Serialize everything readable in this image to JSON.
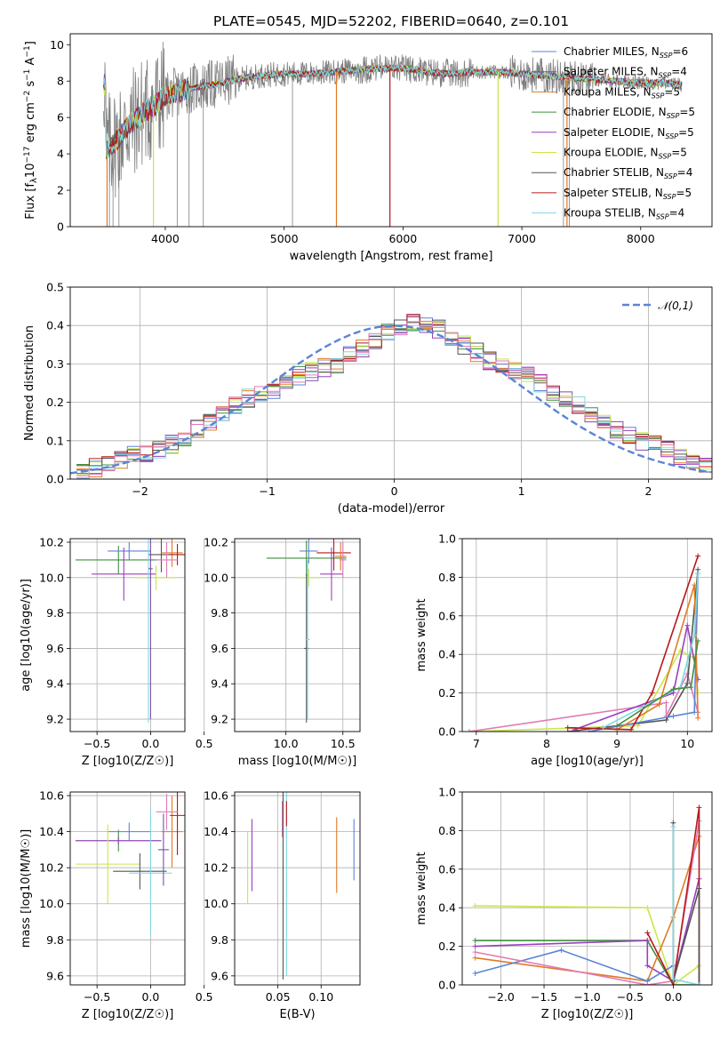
{
  "title": "PLATE=0545, MJD=52202, FIBERID=0640, z=0.101",
  "colors": {
    "Chabrier MILES": "#5b84d6",
    "Salpeter MILES": "#7b4fa8",
    "Kroupa MILES": "#e07b26",
    "Chabrier ELODIE": "#3f8f3f",
    "Salpeter ELODIE": "#9b3fbd",
    "Kroupa ELODIE": "#c8e84a",
    "Chabrier STELIB": "#555555",
    "Salpeter STELIB": "#b51a1a",
    "Kroupa STELIB": "#7fd7e0",
    "data": "#808080",
    "normal": "#5b84d6",
    "extra_pink": "#e07bb5"
  },
  "chart_data": [
    {
      "id": "spectrum",
      "type": "line",
      "title": "PLATE=0545, MJD=52202, FIBERID=0640, z=0.101",
      "xlabel": "wavelength [Angstrom, rest frame]",
      "ylabel_parts": [
        "Flux [f",
        "λ",
        "10",
        "−17",
        " erg cm",
        "−2",
        " s",
        "−1",
        " A",
        "−1",
        "]"
      ],
      "xlim": [
        3200,
        8600
      ],
      "ylim": [
        0,
        10.6
      ],
      "xticks": [
        4000,
        5000,
        6000,
        7000,
        8000
      ],
      "yticks": [
        0,
        2,
        4,
        6,
        8,
        10
      ],
      "legend_position": "upper-right",
      "legend": [
        {
          "name": "Chabrier MILES",
          "nssp": "6"
        },
        {
          "name": "Salpeter MILES",
          "nssp": "4"
        },
        {
          "name": "Kroupa MILES",
          "nssp": "5"
        },
        {
          "name": "Chabrier ELODIE",
          "nssp": "5"
        },
        {
          "name": "Salpeter ELODIE",
          "nssp": "5"
        },
        {
          "name": "Kroupa ELODIE",
          "nssp": "5"
        },
        {
          "name": "Chabrier STELIB",
          "nssp": "4"
        },
        {
          "name": "Salpeter STELIB",
          "nssp": "5"
        },
        {
          "name": "Kroupa STELIB",
          "nssp": "4"
        }
      ],
      "continuum": [
        [
          3500,
          4.2
        ],
        [
          3600,
          4.8
        ],
        [
          3700,
          5.6
        ],
        [
          3800,
          6.2
        ],
        [
          3900,
          6.6
        ],
        [
          4000,
          7.2
        ],
        [
          4200,
          7.6
        ],
        [
          4400,
          7.8
        ],
        [
          4600,
          8.1
        ],
        [
          4800,
          8.3
        ],
        [
          5000,
          8.4
        ],
        [
          5200,
          8.4
        ],
        [
          5400,
          8.5
        ],
        [
          5600,
          8.6
        ],
        [
          5800,
          8.7
        ],
        [
          6000,
          8.7
        ],
        [
          6200,
          8.5
        ],
        [
          6400,
          8.4
        ],
        [
          6600,
          8.5
        ],
        [
          6800,
          8.5
        ],
        [
          7000,
          8.4
        ],
        [
          7200,
          8.3
        ],
        [
          7400,
          8.2
        ],
        [
          7600,
          8.1
        ],
        [
          7800,
          8.0
        ],
        [
          8000,
          7.9
        ],
        [
          8200,
          7.9
        ],
        [
          8350,
          7.8
        ]
      ]
    },
    {
      "id": "residuals",
      "type": "histogram",
      "xlabel": "(data-model)/error",
      "ylabel": "Normed distribution",
      "xlim": [
        -2.55,
        2.5
      ],
      "ylim": [
        0,
        0.5
      ],
      "xticks": [
        -2,
        -1,
        0,
        1,
        2
      ],
      "yticks": [
        0.0,
        0.1,
        0.2,
        0.3,
        0.4,
        0.5
      ],
      "grid": true,
      "legend_position": "upper-right",
      "legend": [
        "𝒩(0,1)"
      ],
      "bin_centers": [
        -2.45,
        -2.35,
        -2.25,
        -2.15,
        -2.05,
        -1.95,
        -1.85,
        -1.75,
        -1.65,
        -1.55,
        -1.45,
        -1.35,
        -1.25,
        -1.15,
        -1.05,
        -0.95,
        -0.85,
        -0.75,
        -0.65,
        -0.55,
        -0.45,
        -0.35,
        -0.25,
        -0.15,
        -0.05,
        0.05,
        0.15,
        0.25,
        0.35,
        0.45,
        0.55,
        0.65,
        0.75,
        0.85,
        0.95,
        1.05,
        1.15,
        1.25,
        1.35,
        1.45,
        1.55,
        1.65,
        1.75,
        1.85,
        1.95,
        2.05,
        2.15,
        2.25,
        2.35,
        2.45
      ],
      "base_values": [
        0.02,
        0.03,
        0.04,
        0.05,
        0.06,
        0.07,
        0.08,
        0.09,
        0.11,
        0.13,
        0.15,
        0.17,
        0.19,
        0.21,
        0.22,
        0.23,
        0.25,
        0.27,
        0.28,
        0.29,
        0.3,
        0.32,
        0.34,
        0.36,
        0.38,
        0.4,
        0.41,
        0.4,
        0.39,
        0.37,
        0.35,
        0.33,
        0.31,
        0.3,
        0.28,
        0.27,
        0.25,
        0.23,
        0.21,
        0.19,
        0.17,
        0.15,
        0.13,
        0.11,
        0.1,
        0.09,
        0.08,
        0.06,
        0.05,
        0.04
      ]
    },
    {
      "id": "age-vs-Z",
      "type": "scatter",
      "xlabel": "Z [log10(Z/Z☉)]",
      "ylabel": "age  [log10(age/yr)]",
      "xlim": [
        -0.75,
        0.32
      ],
      "ylim": [
        9.13,
        10.22
      ],
      "xticks": [
        -0.5,
        0.0,
        0.5
      ],
      "yticks": [
        9.2,
        9.4,
        9.6,
        9.8,
        10.0,
        10.2
      ],
      "grid": true
    },
    {
      "id": "age-vs-mass",
      "type": "scatter",
      "xlabel": "mass [log10(M/M☉)]",
      "xlim": [
        9.55,
        10.65
      ],
      "ylim": [
        9.13,
        10.22
      ],
      "xticks": [
        10.0,
        10.5
      ],
      "yticks": [
        9.2,
        9.4,
        9.6,
        9.8,
        10.0,
        10.2
      ],
      "grid": true
    },
    {
      "id": "weight-vs-age",
      "type": "line",
      "xlabel": "age  [log10(age/yr)]",
      "ylabel": "mass weight",
      "xlim": [
        6.8,
        10.35
      ],
      "ylim": [
        0,
        1.0
      ],
      "xticks": [
        7,
        8,
        9,
        10
      ],
      "yticks": [
        0.0,
        0.2,
        0.4,
        0.6,
        0.8,
        1.0
      ],
      "grid": true
    },
    {
      "id": "mass-vs-Z",
      "type": "scatter",
      "xlabel": "Z [log10(Z/Z☉)]",
      "ylabel": "mass [log10(M/M☉)]",
      "xlim": [
        -0.75,
        0.32
      ],
      "ylim": [
        9.55,
        10.62
      ],
      "xticks": [
        -0.5,
        0.0,
        0.5
      ],
      "yticks": [
        9.6,
        9.8,
        10.0,
        10.2,
        10.4,
        10.6
      ],
      "grid": true
    },
    {
      "id": "mass-vs-ebv",
      "type": "scatter",
      "xlabel": "E(B-V)",
      "xlim": [
        0.0,
        0.145
      ],
      "ylim": [
        9.55,
        10.62
      ],
      "xticks": [
        0.05,
        0.1
      ],
      "yticks": [
        9.6,
        9.8,
        10.0,
        10.2,
        10.4,
        10.6
      ],
      "grid": true
    },
    {
      "id": "weight-vs-Z",
      "type": "line",
      "xlabel": "Z [log10(Z/Z☉)]",
      "ylabel": "mass weight",
      "xlim": [
        -2.45,
        0.45
      ],
      "ylim": [
        0,
        1.0
      ],
      "xticks": [
        -2.0,
        -1.5,
        -1.0,
        -0.5,
        0.0
      ],
      "yticks": [
        0.0,
        0.2,
        0.4,
        0.6,
        0.8,
        1.0
      ],
      "grid": true
    }
  ]
}
